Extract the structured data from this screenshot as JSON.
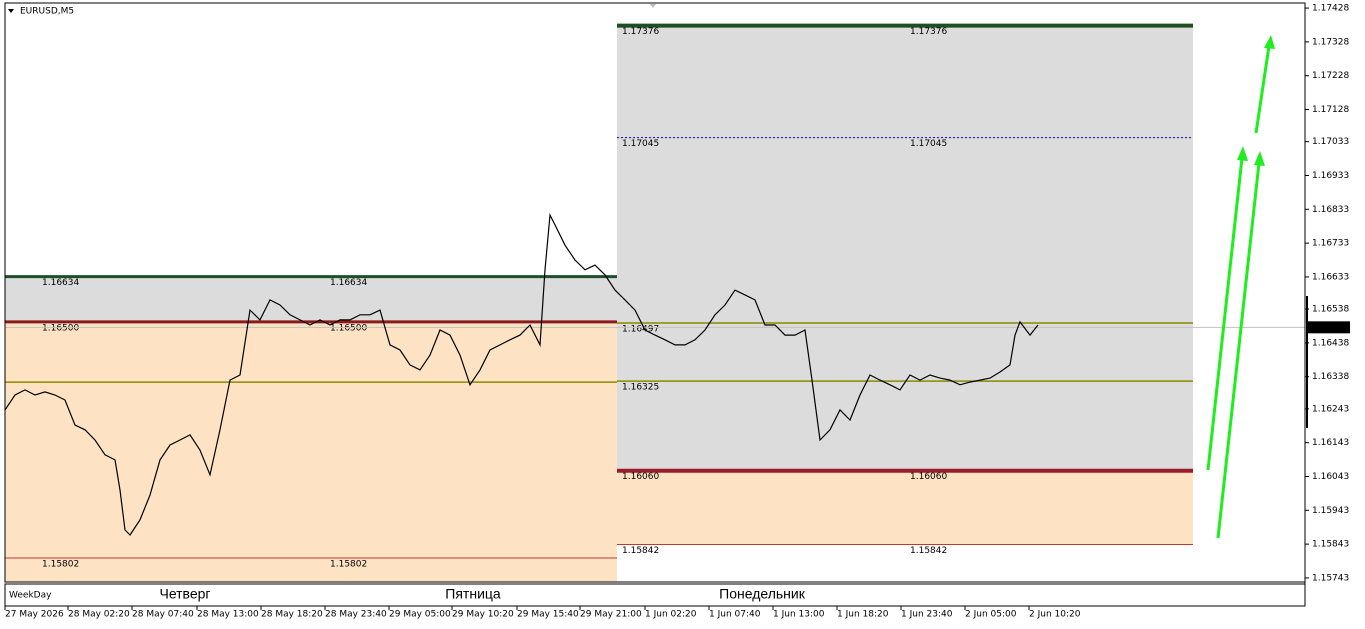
{
  "chart_data": {
    "type": "line",
    "title": "EURUSD,M5",
    "color": "#000000",
    "x": [
      0,
      10,
      20,
      30,
      40,
      50,
      60,
      70,
      80,
      90,
      100,
      110,
      115,
      120,
      125,
      135,
      145,
      155,
      165,
      175,
      185,
      195,
      205,
      215,
      225,
      235,
      245,
      255,
      265,
      275,
      285,
      295,
      305,
      315,
      325,
      335,
      345,
      355,
      365,
      375,
      385,
      395,
      405,
      415,
      425,
      435,
      445,
      455,
      465,
      475,
      485,
      495,
      505,
      515,
      525,
      535,
      540,
      545,
      550,
      560,
      570,
      580,
      590,
      600,
      610,
      620,
      630,
      640,
      650,
      660,
      670,
      680,
      690,
      700,
      710,
      720,
      730,
      740,
      750,
      760,
      770,
      780,
      790,
      800,
      807,
      815,
      825,
      835,
      845,
      855,
      865,
      875,
      885,
      895,
      905,
      915,
      925,
      935,
      945,
      955,
      965,
      975,
      985,
      995,
      1005,
      1010,
      1015,
      1025,
      1033
    ],
    "values": [
      1.1624,
      1.16284,
      1.16299,
      1.16284,
      1.16293,
      1.16284,
      1.16269,
      1.16195,
      1.16181,
      1.16151,
      1.16107,
      1.16092,
      1.16003,
      1.15885,
      1.1587,
      1.15915,
      1.15988,
      1.16092,
      1.16136,
      1.16151,
      1.16166,
      1.16121,
      1.16048,
      1.16181,
      1.16328,
      1.16343,
      1.16535,
      1.16506,
      1.16565,
      1.1655,
      1.16521,
      1.16506,
      1.16491,
      1.16506,
      1.16491,
      1.16506,
      1.16506,
      1.16521,
      1.16521,
      1.16535,
      1.16432,
      1.16417,
      1.16373,
      1.16358,
      1.16402,
      1.16476,
      1.16461,
      1.16402,
      1.16314,
      1.16358,
      1.16417,
      1.16432,
      1.16447,
      1.16461,
      1.16491,
      1.16432,
      1.16654,
      1.16816,
      1.16787,
      1.16727,
      1.16683,
      1.16654,
      1.16668,
      1.16639,
      1.16594,
      1.16565,
      1.16535,
      1.16476,
      1.16461,
      1.16447,
      1.16432,
      1.16432,
      1.16447,
      1.16476,
      1.16521,
      1.1655,
      1.16594,
      1.1658,
      1.16565,
      1.16491,
      1.16491,
      1.16461,
      1.16461,
      1.16476,
      1.16328,
      1.16151,
      1.16181,
      1.1624,
      1.1621,
      1.16284,
      1.16343,
      1.16328,
      1.16314,
      1.16299,
      1.16343,
      1.16328,
      1.16343,
      1.16334,
      1.16328,
      1.16314,
      1.16322,
      1.16328,
      1.16334,
      1.16352,
      1.16373,
      1.16461,
      1.165,
      1.16461,
      1.16491
    ],
    "xlim": [
      0,
      1300
    ],
    "ylim": [
      1.15731,
      1.17443
    ],
    "xticks": [
      {
        "value": 0,
        "label": "27 May 2026"
      },
      {
        "value": 63,
        "label": "28 May 02:20"
      },
      {
        "value": 127,
        "label": "28 May 07:40"
      },
      {
        "value": 192,
        "label": "28 May 13:00"
      },
      {
        "value": 256,
        "label": "28 May 18:20"
      },
      {
        "value": 320,
        "label": "28 May 23:40"
      },
      {
        "value": 384,
        "label": "29 May 05:00"
      },
      {
        "value": 447,
        "label": "29 May 10:20"
      },
      {
        "value": 512,
        "label": "29 May 15:40"
      },
      {
        "value": 575,
        "label": "29 May 21:00"
      },
      {
        "value": 640,
        "label": "1 Jun 02:20"
      },
      {
        "value": 704,
        "label": "1 Jun 07:40"
      },
      {
        "value": 768,
        "label": "1 Jun 13:00"
      },
      {
        "value": 832,
        "label": "1 Jun 18:20"
      },
      {
        "value": 896,
        "label": "1 Jun 23:40"
      },
      {
        "value": 960,
        "label": "2 Jun 05:00"
      },
      {
        "value": 1024,
        "label": "2 Jun 10:20"
      }
    ],
    "yticks": [
      1.17428,
      1.17328,
      1.17228,
      1.17128,
      1.17033,
      1.16933,
      1.16833,
      1.16733,
      1.16633,
      1.16538,
      1.16438,
      1.16338,
      1.16243,
      1.16143,
      1.16043,
      1.15943,
      1.15843,
      1.15743
    ],
    "last_price": 1.16484,
    "zones": [
      {
        "from": 1.165,
        "to": 1.16634,
        "x": [
          0,
          612
        ],
        "color": "#dcdcdc"
      },
      {
        "from": 1.15731,
        "to": 1.165,
        "x": [
          0,
          612
        ],
        "color": "#fde3c4"
      },
      {
        "from": 1.1606,
        "to": 1.17376,
        "x": [
          612,
          1188
        ],
        "color": "#dcdcdc"
      },
      {
        "from": 1.15842,
        "to": 1.1606,
        "x": [
          612,
          1188
        ],
        "color": "#fde3c4"
      }
    ],
    "levels": [
      {
        "value": 1.16634,
        "x": [
          0,
          612
        ],
        "color": "#1f4f2a",
        "width": 3,
        "labels": [
          "1.16634",
          "1.16634"
        ],
        "label_color": "#0000cc"
      },
      {
        "value": 1.165,
        "x": [
          0,
          612
        ],
        "color": "#8b1a1a",
        "width": 3,
        "labels": [
          "1.16500",
          "1.16500"
        ],
        "label_color": "#555555"
      },
      {
        "value": 1.16322,
        "x": [
          0,
          612
        ],
        "color": "#8a8a00",
        "width": 1.5
      },
      {
        "value": 1.15802,
        "x": [
          0,
          612
        ],
        "color": "#c0392b",
        "width": 1,
        "labels": [
          "1.15802",
          "1.15802"
        ],
        "label_color": "#333333"
      },
      {
        "value": 1.17376,
        "x": [
          612,
          1188
        ],
        "color": "#1f4f1f",
        "width": 4,
        "labels": [
          "1.17376",
          "1.17376"
        ],
        "label_color": "#333333"
      },
      {
        "value": 1.17045,
        "x": [
          612,
          1188
        ],
        "color": "#0000cc",
        "width": 1,
        "dash": true,
        "labels": [
          "1.17045",
          "1.17045"
        ],
        "label_color": "#0000cc"
      },
      {
        "value": 1.16497,
        "x": [
          612,
          1188
        ],
        "color": "#8a8a00",
        "width": 1.5,
        "labels": [
          "1.16497"
        ],
        "label_color": "#888866"
      },
      {
        "value": 1.16325,
        "x": [
          612,
          1188
        ],
        "color": "#8a8a00",
        "width": 1.5,
        "labels": [
          "1.16325"
        ],
        "label_color": "#888866"
      },
      {
        "value": 1.1606,
        "x": [
          612,
          1188
        ],
        "color": "#9b1c2a",
        "width": 4,
        "labels": [
          "1.16060",
          "1.16060"
        ],
        "label_color": "#333333"
      },
      {
        "value": 1.15842,
        "x": [
          612,
          1188
        ],
        "color": "#c0392b",
        "width": 1,
        "labels": [
          "1.15842",
          "1.15842"
        ],
        "label_color": "#333333"
      }
    ],
    "days": [
      "Четверг",
      "Пятница",
      "Понедельник"
    ],
    "panel": "WeekDay"
  }
}
